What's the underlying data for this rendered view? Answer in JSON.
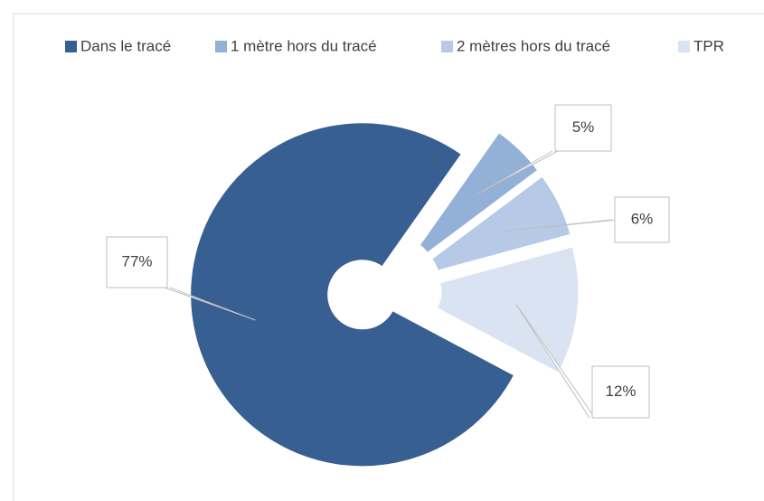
{
  "chart_data": {
    "type": "donut",
    "categories": [
      "Dans le tracé",
      "1 mètre hors du tracé",
      "2 mètres hors du tracé",
      "TPR"
    ],
    "values": [
      77,
      5,
      6,
      12
    ],
    "value_labels": [
      "77%",
      "5%",
      "6%",
      "12%"
    ],
    "colors": [
      "#375f91",
      "#93b0d6",
      "#b6c9e6",
      "#dae3f1"
    ],
    "legend": "top"
  }
}
